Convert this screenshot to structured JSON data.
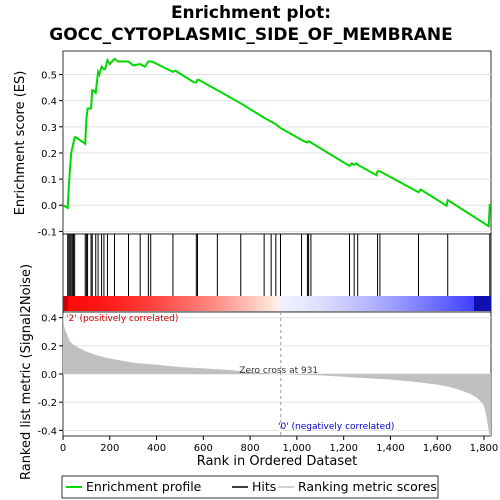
{
  "chart_data": {
    "type": "line",
    "title_lines": [
      "Enrichment plot:",
      "GOCC_CYTOPLASMIC_SIDE_OF_MEMBRANE"
    ],
    "es_ylabel": "Enrichment score (ES)",
    "metric_ylabel": "Ranked list metric (Signal2Noise)",
    "xlabel": "Rank in Ordered Dataset",
    "xlim": [
      0,
      1830
    ],
    "x_ticks": [
      0,
      200,
      400,
      600,
      800,
      1000,
      1200,
      1400,
      1600,
      1800
    ],
    "x_tick_labels": [
      "0",
      "200",
      "400",
      "600",
      "800",
      "1,000",
      "1,200",
      "1,400",
      "1,600",
      "1,800"
    ],
    "es_ylim": [
      -0.11,
      0.59
    ],
    "es_ticks": [
      -0.1,
      0.0,
      0.1,
      0.2,
      0.3,
      0.4,
      0.5
    ],
    "es_tick_labels": [
      "-0.1",
      "0.0",
      "0.1",
      "0.2",
      "0.3",
      "0.4",
      "0.5"
    ],
    "metric_ylim": [
      -0.44,
      0.44
    ],
    "metric_ticks": [
      -0.4,
      -0.2,
      0.0,
      0.2,
      0.4
    ],
    "metric_tick_labels": [
      "-0.4",
      "-0.2",
      "0.0",
      "0.2",
      "0.4"
    ],
    "enrichment_profile": {
      "x": [
        0,
        20,
        25,
        30,
        35,
        40,
        45,
        50,
        55,
        95,
        100,
        105,
        120,
        125,
        130,
        140,
        150,
        155,
        165,
        175,
        180,
        190,
        200,
        220,
        235,
        280,
        300,
        330,
        350,
        365,
        375,
        380,
        470,
        480,
        560,
        570,
        575,
        580,
        660,
        670,
        760,
        860,
        890,
        910,
        930,
        1020,
        1030,
        1045,
        1050,
        1060,
        1225,
        1235,
        1245,
        1255,
        1260,
        1340,
        1345,
        1355,
        1520,
        1530,
        1640,
        1645,
        1820,
        1825
      ],
      "y": [
        0.0,
        -0.01,
        0.07,
        0.14,
        0.2,
        0.22,
        0.24,
        0.26,
        0.26,
        0.235,
        0.33,
        0.37,
        0.37,
        0.44,
        0.44,
        0.43,
        0.51,
        0.5,
        0.53,
        0.52,
        0.52,
        0.555,
        0.54,
        0.56,
        0.55,
        0.55,
        0.535,
        0.54,
        0.53,
        0.55,
        0.55,
        0.55,
        0.51,
        0.515,
        0.47,
        0.47,
        0.48,
        0.48,
        0.44,
        0.435,
        0.39,
        0.335,
        0.32,
        0.31,
        0.295,
        0.25,
        0.245,
        0.24,
        0.245,
        0.24,
        0.15,
        0.16,
        0.155,
        0.16,
        0.155,
        0.115,
        0.13,
        0.13,
        0.05,
        0.06,
        -0.002,
        0.02,
        -0.08,
        0.005
      ]
    },
    "hits": [
      20,
      25,
      30,
      35,
      40,
      45,
      50,
      95,
      100,
      105,
      120,
      125,
      140,
      150,
      165,
      175,
      190,
      220,
      280,
      330,
      365,
      375,
      470,
      570,
      575,
      660,
      760,
      860,
      890,
      910,
      930,
      1020,
      1045,
      1050,
      1060,
      1225,
      1245,
      1260,
      1345,
      1355,
      1520,
      1645,
      1825
    ],
    "ranked_metric": {
      "x": [
        0,
        5,
        15,
        30,
        50,
        75,
        100,
        150,
        200,
        300,
        400,
        500,
        600,
        700,
        800,
        931,
        1000,
        1100,
        1200,
        1300,
        1400,
        1500,
        1600,
        1650,
        1700,
        1740,
        1770,
        1790,
        1800,
        1805,
        1810,
        1815,
        1820,
        1825,
        1830
      ],
      "y": [
        0.44,
        0.33,
        0.29,
        0.23,
        0.2,
        0.18,
        0.16,
        0.13,
        0.11,
        0.08,
        0.065,
        0.05,
        0.04,
        0.03,
        0.015,
        0.0,
        -0.005,
        -0.01,
        -0.02,
        -0.03,
        -0.04,
        -0.055,
        -0.075,
        -0.09,
        -0.115,
        -0.14,
        -0.17,
        -0.2,
        -0.23,
        -0.26,
        -0.3,
        -0.35,
        -0.4,
        -0.44,
        -0.44
      ]
    },
    "zero_cross_rank": 931,
    "zero_cross_label": "Zero cross at 931",
    "pos_label": "'2' (positively correlated)",
    "neg_label": "'0' (negatively correlated)",
    "colors": {
      "profile": "#00d800",
      "hits": "#000000",
      "metric_fill": "#c0c0c0",
      "pos_text": "#cc0000",
      "neg_text": "#0000cc",
      "pos_bar": "#ff0000",
      "neg_bar": "#0000ff"
    },
    "legend": [
      {
        "label": "Enrichment profile",
        "style": "profile"
      },
      {
        "label": "Hits",
        "style": "hits"
      },
      {
        "label": "Ranking metric scores",
        "style": "metric"
      }
    ],
    "legend_placement": "bottom"
  }
}
